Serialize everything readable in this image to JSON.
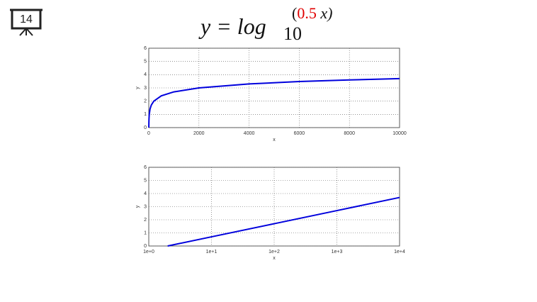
{
  "slide": {
    "number": "14",
    "title": {
      "main": "y = log",
      "subscript": "10",
      "open": "(",
      "coef": "0.5",
      "close": " x)"
    }
  },
  "chart_data": [
    {
      "type": "line",
      "xscale": "linear",
      "x_label": "x",
      "y_label": "y",
      "x": [
        2,
        5,
        10,
        20,
        50,
        100,
        200,
        500,
        1000,
        2000,
        4000,
        6000,
        8000,
        10000
      ],
      "series": [
        {
          "name": "y",
          "color": "#0000dd",
          "values": [
            0,
            0.4,
            0.7,
            1,
            1.4,
            1.7,
            2,
            2.4,
            2.7,
            3,
            3.3,
            3.48,
            3.6,
            3.7
          ]
        }
      ],
      "xlim": [
        0,
        10000
      ],
      "xticks": [
        0,
        2000,
        4000,
        6000,
        8000,
        10000
      ],
      "ylim": [
        0,
        6
      ],
      "yticks": [
        0,
        1,
        2,
        3,
        4,
        5,
        6
      ],
      "grid": true
    },
    {
      "type": "line",
      "xscale": "log",
      "x_label": "x",
      "y_label": "y",
      "x": [
        2,
        10,
        100,
        1000,
        10000
      ],
      "series": [
        {
          "name": "y",
          "color": "#0000dd",
          "values": [
            0,
            0.7,
            1.7,
            2.7,
            3.7
          ]
        }
      ],
      "xlim": [
        1,
        10000
      ],
      "xticks": [
        {
          "value": 1,
          "label": "1e+0"
        },
        {
          "value": 10,
          "label": "1e+1"
        },
        {
          "value": 100,
          "label": "1e+2"
        },
        {
          "value": 1000,
          "label": "1e+3"
        },
        {
          "value": 10000,
          "label": "1e+4"
        }
      ],
      "ylim": [
        0,
        6
      ],
      "yticks": [
        0,
        1,
        2,
        3,
        4,
        5,
        6
      ],
      "grid": true
    }
  ]
}
